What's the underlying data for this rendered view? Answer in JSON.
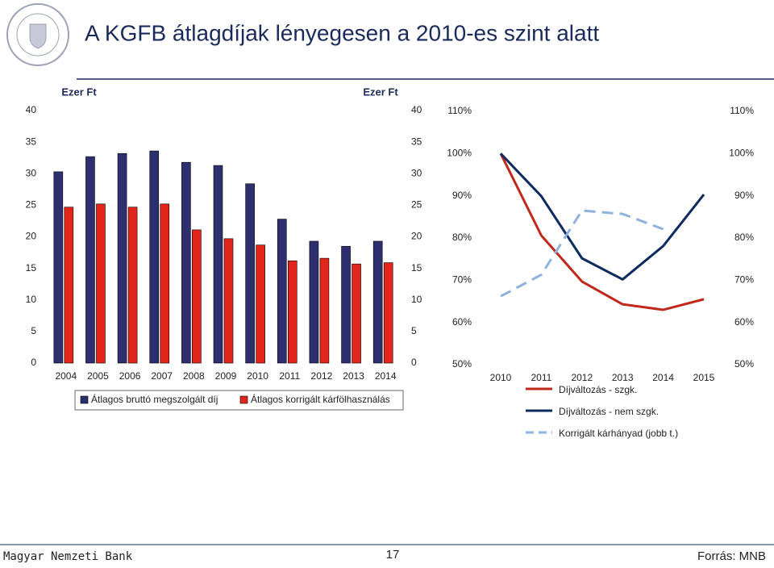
{
  "title": "A KGFB átlagdíjak lényegesen a 2010-es szint alatt",
  "chart_data": [
    {
      "type": "bar",
      "ylabel": "Ezer Ft",
      "y2label": "Ezer Ft",
      "categories": [
        "2004",
        "2005",
        "2006",
        "2007",
        "2008",
        "2009",
        "2010",
        "2011",
        "2012",
        "2013",
        "2014"
      ],
      "series": [
        {
          "name": "Átlagos bruttó megszolgált díj",
          "color": "#2e2f6e",
          "values": [
            30.3,
            32.7,
            33.2,
            33.6,
            31.8,
            31.3,
            28.4,
            22.8,
            19.3,
            18.5,
            19.3
          ]
        },
        {
          "name": "Átlagos korrigált kárfölhasználás",
          "color": "#e3261c",
          "values": [
            24.7,
            25.2,
            24.7,
            25.2,
            21.1,
            19.7,
            18.7,
            16.2,
            16.6,
            15.7,
            15.9
          ]
        }
      ],
      "ylim": [
        0,
        40
      ],
      "yticks": [
        0,
        5,
        10,
        15,
        20,
        25,
        30,
        35,
        40
      ],
      "y2lim": [
        0,
        40
      ],
      "y2ticks": [
        0,
        5,
        10,
        15,
        20,
        25,
        30,
        35,
        40
      ]
    },
    {
      "type": "line",
      "x": [
        2010,
        2011,
        2012,
        2013,
        2014,
        2015
      ],
      "xlim": [
        2010,
        2015
      ],
      "xticks": [
        2010,
        2011,
        2012,
        2013,
        2014,
        2015
      ],
      "series": [
        {
          "name": "Díjváltozás - szgk.",
          "color": "#c0281c",
          "values": [
            100,
            80.6,
            69.7,
            64.3,
            63.0,
            65.5
          ]
        },
        {
          "name": "Díjváltozás - nem szgk.",
          "color": "#0d2b5e",
          "values": [
            100,
            89.9,
            75.2,
            70.2,
            78.1,
            90.3
          ]
        },
        {
          "name": "Korrigált kárhányad (jobb t.)",
          "color": "#8fb3dd",
          "style": "dashed",
          "axis": "y2",
          "values": [
            66.2,
            71.3,
            86.5,
            85.7,
            82.1,
            null
          ]
        }
      ],
      "ylim": [
        50,
        110
      ],
      "yticks": [
        {
          "value": 50,
          "label": "50%"
        },
        {
          "value": 60,
          "label": "60%"
        },
        {
          "value": 70,
          "label": "70%"
        },
        {
          "value": 80,
          "label": "80%"
        },
        {
          "value": 90,
          "label": "90%"
        },
        {
          "value": 100,
          "label": "100%"
        },
        {
          "value": 110,
          "label": "110%"
        }
      ],
      "y2lim": [
        50,
        110
      ],
      "y2ticks": [
        {
          "value": 50,
          "label": "50%"
        },
        {
          "value": 60,
          "label": "60%"
        },
        {
          "value": 70,
          "label": "70%"
        },
        {
          "value": 80,
          "label": "80%"
        },
        {
          "value": 90,
          "label": "90%"
        },
        {
          "value": 100,
          "label": "100%"
        },
        {
          "value": 110,
          "label": "110%"
        }
      ]
    }
  ],
  "footer": {
    "bank": "Magyar Nemzeti Bank",
    "page": "17",
    "source": "Forrás: MNB"
  }
}
